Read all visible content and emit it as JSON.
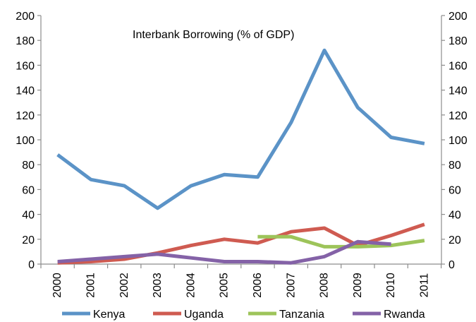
{
  "chart_data": {
    "type": "line",
    "title": "Interbank Borrowing (% of GDP)",
    "x": [
      "2000",
      "2001",
      "2002",
      "2003",
      "2004",
      "2005",
      "2006",
      "2007",
      "2008",
      "2009",
      "2010",
      "2011"
    ],
    "ylim": [
      0,
      200
    ],
    "yticks": [
      0,
      20,
      40,
      60,
      80,
      100,
      120,
      140,
      160,
      180,
      200
    ],
    "y_axis_right_mirrors_left": true,
    "grid": false,
    "legend_position": "bottom",
    "series": [
      {
        "name": "Kenya",
        "color": "#5b93c7",
        "values": [
          88,
          68,
          63,
          45,
          63,
          72,
          70,
          114,
          172,
          126,
          102,
          97
        ]
      },
      {
        "name": "Uganda",
        "color": "#cf5b51",
        "values": [
          1,
          2,
          4,
          9,
          15,
          20,
          17,
          26,
          29,
          15,
          23,
          32
        ]
      },
      {
        "name": "Tanzania",
        "color": "#9dc45a",
        "values": [
          null,
          null,
          null,
          null,
          null,
          null,
          22,
          22,
          14,
          14,
          15,
          19
        ]
      },
      {
        "name": "Rwanda",
        "color": "#8462a7",
        "values": [
          2,
          4,
          6,
          8,
          5,
          2,
          2,
          1,
          6,
          18,
          16,
          null
        ]
      }
    ]
  }
}
